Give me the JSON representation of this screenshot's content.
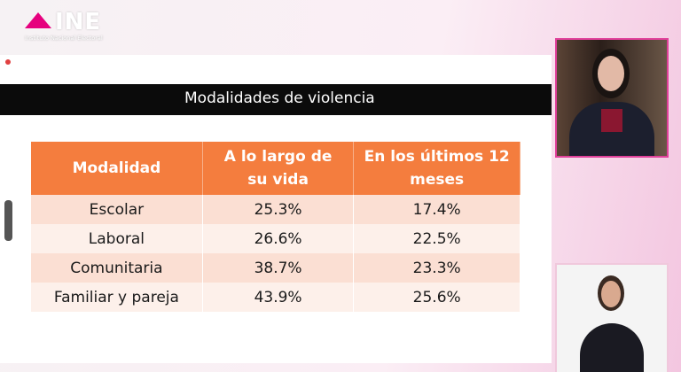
{
  "logo": {
    "text": "INE",
    "subtitle": "Instituto Nacional Electoral"
  },
  "slide": {
    "title": "Modalidades de violencia"
  },
  "table": {
    "header": [
      "Modalidad",
      "A lo largo de su vida",
      "En los últimos 12 meses"
    ],
    "rows": [
      [
        "Escolar",
        "25.3%",
        "17.4%"
      ],
      [
        "Laboral",
        "26.6%",
        "22.5%"
      ],
      [
        "Comunitaria",
        "38.7%",
        "23.3%"
      ],
      [
        "Familiar  y pareja",
        "43.9%",
        "25.6%"
      ]
    ]
  }
}
